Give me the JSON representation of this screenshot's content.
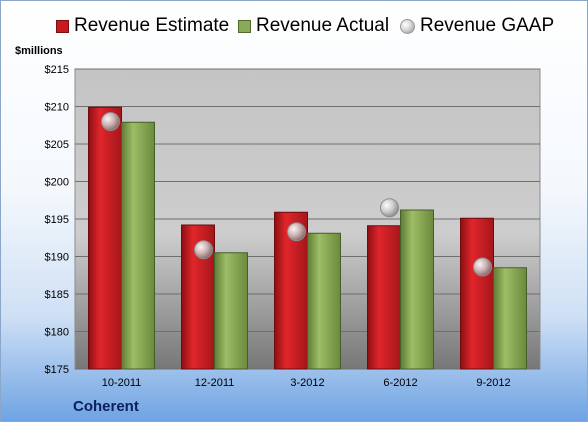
{
  "chart_data": {
    "type": "bar",
    "categories": [
      "10-2011",
      "12-2011",
      "3-2012",
      "6-2012",
      "9-2012"
    ],
    "series": [
      {
        "name": "Revenue Estimate",
        "kind": "bar",
        "color": "#c9191e",
        "values": [
          209.9,
          194.2,
          195.9,
          194.1,
          195.1
        ]
      },
      {
        "name": "Revenue Actual",
        "kind": "bar",
        "color": "#8aab55",
        "values": [
          207.9,
          190.5,
          193.1,
          196.2,
          188.5
        ]
      },
      {
        "name": "Revenue GAAP",
        "kind": "marker",
        "color": "#c0c0c0",
        "values": [
          208.0,
          190.9,
          193.3,
          196.5,
          188.6
        ]
      }
    ],
    "ylabel": "$millions",
    "ylim": [
      175,
      215
    ],
    "yticks": [
      "$175",
      "$180",
      "$185",
      "$190",
      "$195",
      "$200",
      "$205",
      "$210",
      "$215"
    ],
    "grid": true,
    "legend_position": "top"
  },
  "company": "Coherent"
}
